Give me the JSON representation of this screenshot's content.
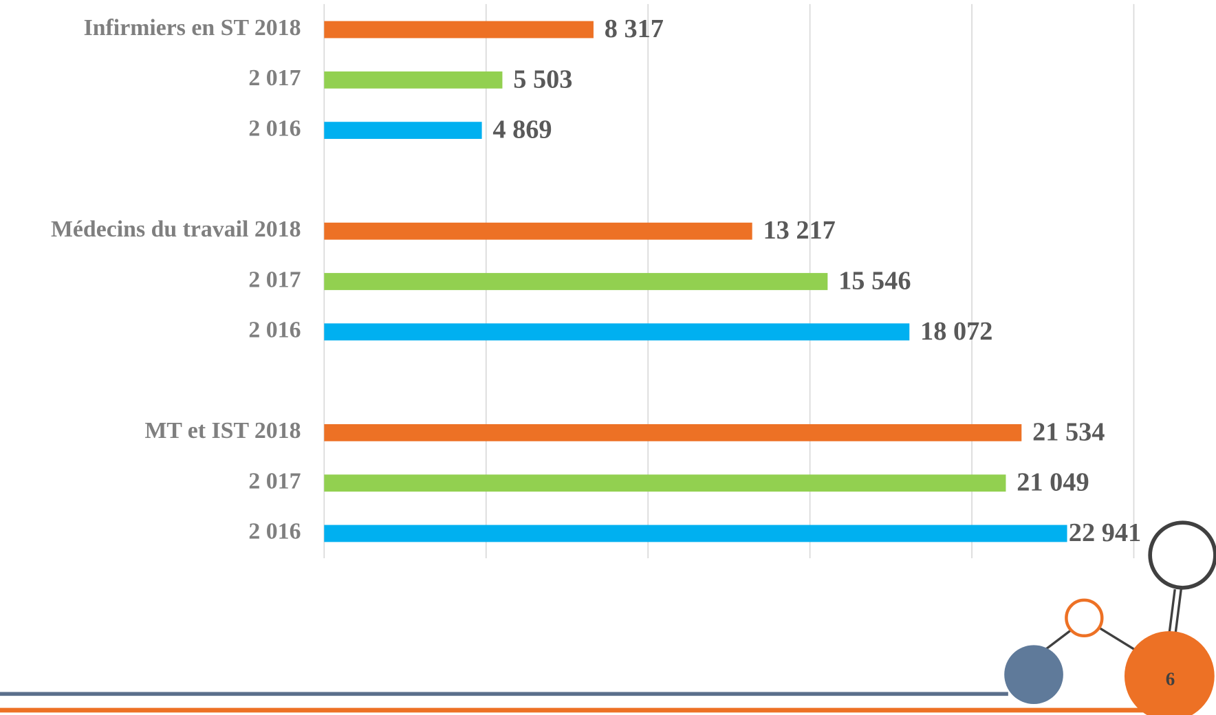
{
  "chart_data": {
    "type": "bar",
    "orientation": "horizontal",
    "categories": [
      "Infirmiers en ST 2018",
      "2 017",
      "2 016",
      "Médecins du travail 2018",
      "2 017",
      "2 016",
      "MT et IST 2018",
      "2 017",
      "2 016"
    ],
    "values": [
      8317,
      5503,
      4869,
      13217,
      15546,
      18072,
      21534,
      21049,
      22941
    ],
    "value_labels": [
      "8 317",
      "5 503",
      "4 869",
      "13 217",
      "15 546",
      "18 072",
      "21 534",
      "21 049",
      "22 941"
    ],
    "colors": [
      "#ed7125",
      "#92d050",
      "#00b0f0",
      "#ed7125",
      "#92d050",
      "#00b0f0",
      "#ed7125",
      "#92d050",
      "#00b0f0"
    ],
    "xlim": [
      0,
      25000
    ],
    "xticks": [
      0,
      5000,
      10000,
      15000,
      20000,
      25000
    ],
    "grid": true
  },
  "page_number": "6"
}
